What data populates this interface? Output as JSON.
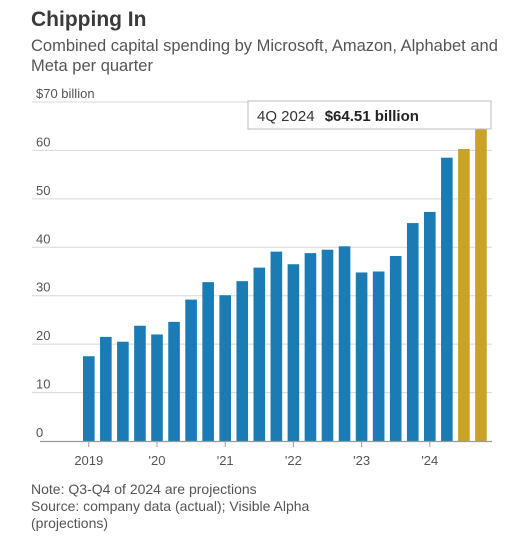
{
  "header": {
    "title": "Chipping In",
    "subtitle": "Combined capital spending by Microsoft, Amazon, Alphabet and Meta per quarter"
  },
  "colors": {
    "actual": "#1a7bb5",
    "projection": "#c9a227",
    "grid": "#d8d8d8",
    "axis": "#9a9a9a"
  },
  "callout": {
    "period": "4Q 2024",
    "value": "$64.51 billion"
  },
  "notes": {
    "note": "Note: Q3-Q4 of 2024 are projections",
    "source": "Source: company data (actual); Visible Alpha\n(projections)"
  },
  "chart_data": {
    "type": "bar",
    "title": "Chipping In",
    "subtitle": "Combined capital spending by Microsoft, Amazon, Alphabet and Meta per quarter",
    "unit": "billion dollars",
    "ylim": [
      0,
      70
    ],
    "y_ticks": [
      0,
      10,
      20,
      30,
      40,
      50,
      60,
      70
    ],
    "y_tick_labels": [
      "0",
      "10",
      "20",
      "30",
      "40",
      "50",
      "60",
      "$70 billion"
    ],
    "x_tick_labels": [
      "2019",
      "'20",
      "'21",
      "'22",
      "'23",
      "'24"
    ],
    "grid": true,
    "legend": "none",
    "categories": [
      "1Q 2019",
      "2Q 2019",
      "3Q 2019",
      "4Q 2019",
      "1Q 2020",
      "2Q 2020",
      "3Q 2020",
      "4Q 2020",
      "1Q 2021",
      "2Q 2021",
      "3Q 2021",
      "4Q 2021",
      "1Q 2022",
      "2Q 2022",
      "3Q 2022",
      "4Q 2022",
      "1Q 2023",
      "2Q 2023",
      "3Q 2023",
      "4Q 2023",
      "1Q 2024",
      "2Q 2024",
      "3Q 2024",
      "4Q 2024"
    ],
    "series": [
      {
        "values": [
          17.5,
          21.5,
          20.5,
          23.8,
          22.0,
          24.6,
          29.2,
          32.8,
          30.1,
          33.0,
          35.8,
          39.1,
          36.5,
          38.8,
          39.5,
          40.2,
          34.8,
          35.0,
          38.2,
          45.0,
          47.3,
          58.5,
          60.3,
          64.51
        ],
        "projected": [
          false,
          false,
          false,
          false,
          false,
          false,
          false,
          false,
          false,
          false,
          false,
          false,
          false,
          false,
          false,
          false,
          false,
          false,
          false,
          false,
          false,
          false,
          true,
          true
        ]
      }
    ]
  }
}
